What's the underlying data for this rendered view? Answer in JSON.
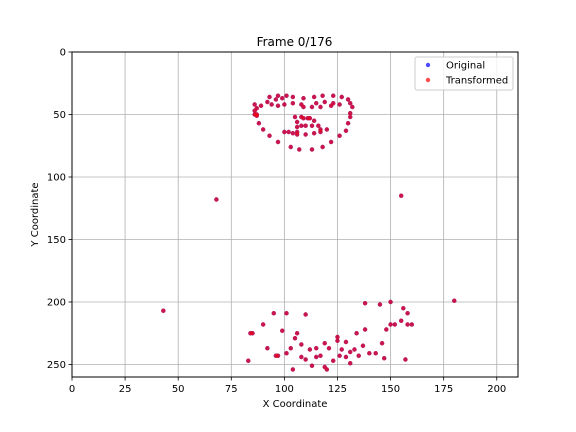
{
  "chart_data": {
    "type": "scatter",
    "title": "Frame 0/176",
    "xlabel": "X Coordinate",
    "ylabel": "Y Coordinate",
    "xlim": [
      0,
      210
    ],
    "ylim": [
      260,
      0
    ],
    "y_inverted": true,
    "grid": true,
    "legend_position": "top-right",
    "x_ticks": [
      0,
      25,
      50,
      75,
      100,
      125,
      150,
      175,
      200
    ],
    "y_ticks": [
      0,
      50,
      100,
      150,
      200,
      250
    ],
    "series": [
      {
        "name": "Original",
        "color": "#0000ff",
        "points": [
          [
            86,
            47
          ],
          [
            87,
            45
          ],
          [
            89,
            43
          ],
          [
            92,
            40
          ],
          [
            96,
            38
          ],
          [
            99,
            37
          ],
          [
            86,
            42
          ],
          [
            93,
            36
          ],
          [
            97,
            35
          ],
          [
            101,
            35
          ],
          [
            104,
            36
          ],
          [
            109,
            37
          ],
          [
            109,
            44
          ],
          [
            113,
            44
          ],
          [
            117,
            44
          ],
          [
            122,
            43
          ],
          [
            114,
            36
          ],
          [
            118,
            35
          ],
          [
            123,
            35
          ],
          [
            127,
            36
          ],
          [
            130,
            38
          ],
          [
            131,
            41
          ],
          [
            132,
            44
          ],
          [
            131,
            49
          ],
          [
            131,
            52
          ],
          [
            130,
            57
          ],
          [
            129,
            63
          ],
          [
            126,
            67
          ],
          [
            122,
            72
          ],
          [
            118,
            76
          ],
          [
            113,
            78
          ],
          [
            107,
            78
          ],
          [
            103,
            76
          ],
          [
            97,
            72
          ],
          [
            93,
            67
          ],
          [
            90,
            62
          ],
          [
            88,
            57
          ],
          [
            87,
            51
          ],
          [
            97,
            43
          ],
          [
            100,
            42
          ],
          [
            104,
            41
          ],
          [
            108,
            42
          ],
          [
            115,
            41
          ],
          [
            119,
            40
          ],
          [
            123,
            41
          ],
          [
            126,
            42
          ],
          [
            105,
            52
          ],
          [
            106,
            56
          ],
          [
            106,
            60
          ],
          [
            106,
            64
          ],
          [
            109,
            53
          ],
          [
            112,
            53
          ],
          [
            114,
            55
          ],
          [
            116,
            59
          ],
          [
            117,
            62
          ],
          [
            100,
            64
          ],
          [
            102,
            64
          ],
          [
            104,
            65
          ],
          [
            106,
            66
          ],
          [
            110,
            66
          ],
          [
            114,
            65
          ],
          [
            117,
            64
          ],
          [
            120,
            62
          ],
          [
            108,
            59
          ],
          [
            110,
            59
          ],
          [
            113,
            59
          ],
          [
            68,
            118
          ],
          [
            155,
            115
          ],
          [
            43,
            207
          ],
          [
            84,
            225
          ],
          [
            85,
            225
          ],
          [
            83,
            247
          ],
          [
            90,
            218
          ],
          [
            92,
            237
          ],
          [
            96,
            243
          ],
          [
            99,
            223
          ],
          [
            101,
            241
          ],
          [
            103,
            237
          ],
          [
            104,
            254
          ],
          [
            105,
            229
          ],
          [
            106,
            225
          ],
          [
            108,
            234
          ],
          [
            108,
            244
          ],
          [
            110,
            210
          ],
          [
            110,
            246
          ],
          [
            112,
            238
          ],
          [
            113,
            251
          ],
          [
            115,
            244
          ],
          [
            117,
            243
          ],
          [
            119,
            233
          ],
          [
            121,
            237
          ],
          [
            123,
            247
          ],
          [
            125,
            231
          ],
          [
            127,
            238
          ],
          [
            129,
            244
          ],
          [
            131,
            249
          ],
          [
            131,
            240
          ],
          [
            129,
            232
          ],
          [
            133,
            238
          ],
          [
            134,
            225
          ],
          [
            137,
            235
          ],
          [
            138,
            222
          ],
          [
            140,
            241
          ],
          [
            143,
            241
          ],
          [
            146,
            233
          ],
          [
            148,
            222
          ],
          [
            150,
            218
          ],
          [
            150,
            200
          ],
          [
            152,
            218
          ],
          [
            155,
            215
          ],
          [
            156,
            205
          ],
          [
            158,
            209
          ],
          [
            157,
            246
          ],
          [
            180,
            199
          ],
          [
            95,
            209
          ],
          [
            101,
            209
          ],
          [
            97,
            243
          ],
          [
            115,
            237
          ],
          [
            119,
            252
          ],
          [
            120,
            254
          ],
          [
            125,
            228
          ],
          [
            126,
            243
          ],
          [
            135,
            243
          ],
          [
            138,
            201
          ],
          [
            145,
            202
          ],
          [
            147,
            245
          ],
          [
            158,
            218
          ],
          [
            160,
            218
          ],
          [
            86,
            50
          ],
          [
            87,
            50
          ],
          [
            94,
            42
          ],
          [
            108,
            52
          ],
          [
            111,
            53
          ]
        ]
      },
      {
        "name": "Transformed",
        "color": "#ff0000",
        "points": [
          [
            86,
            47
          ],
          [
            87,
            45
          ],
          [
            89,
            43
          ],
          [
            92,
            40
          ],
          [
            96,
            38
          ],
          [
            99,
            37
          ],
          [
            86,
            42
          ],
          [
            93,
            36
          ],
          [
            97,
            35
          ],
          [
            101,
            35
          ],
          [
            104,
            36
          ],
          [
            109,
            37
          ],
          [
            109,
            44
          ],
          [
            113,
            44
          ],
          [
            117,
            44
          ],
          [
            122,
            43
          ],
          [
            114,
            36
          ],
          [
            118,
            35
          ],
          [
            123,
            35
          ],
          [
            127,
            36
          ],
          [
            130,
            38
          ],
          [
            131,
            41
          ],
          [
            132,
            44
          ],
          [
            131,
            49
          ],
          [
            131,
            52
          ],
          [
            130,
            57
          ],
          [
            129,
            63
          ],
          [
            126,
            67
          ],
          [
            122,
            72
          ],
          [
            118,
            76
          ],
          [
            113,
            78
          ],
          [
            107,
            78
          ],
          [
            103,
            76
          ],
          [
            97,
            72
          ],
          [
            93,
            67
          ],
          [
            90,
            62
          ],
          [
            88,
            57
          ],
          [
            87,
            51
          ],
          [
            97,
            43
          ],
          [
            100,
            42
          ],
          [
            104,
            41
          ],
          [
            108,
            42
          ],
          [
            115,
            41
          ],
          [
            119,
            40
          ],
          [
            123,
            41
          ],
          [
            126,
            42
          ],
          [
            105,
            52
          ],
          [
            106,
            56
          ],
          [
            106,
            60
          ],
          [
            106,
            64
          ],
          [
            109,
            53
          ],
          [
            112,
            53
          ],
          [
            114,
            55
          ],
          [
            116,
            59
          ],
          [
            117,
            62
          ],
          [
            100,
            64
          ],
          [
            102,
            64
          ],
          [
            104,
            65
          ],
          [
            106,
            66
          ],
          [
            110,
            66
          ],
          [
            114,
            65
          ],
          [
            117,
            64
          ],
          [
            120,
            62
          ],
          [
            108,
            59
          ],
          [
            110,
            59
          ],
          [
            113,
            59
          ],
          [
            68,
            118
          ],
          [
            155,
            115
          ],
          [
            43,
            207
          ],
          [
            84,
            225
          ],
          [
            85,
            225
          ],
          [
            83,
            247
          ],
          [
            90,
            218
          ],
          [
            92,
            237
          ],
          [
            96,
            243
          ],
          [
            99,
            223
          ],
          [
            101,
            241
          ],
          [
            103,
            237
          ],
          [
            104,
            254
          ],
          [
            105,
            229
          ],
          [
            106,
            225
          ],
          [
            108,
            234
          ],
          [
            108,
            244
          ],
          [
            110,
            210
          ],
          [
            110,
            246
          ],
          [
            112,
            238
          ],
          [
            113,
            251
          ],
          [
            115,
            244
          ],
          [
            117,
            243
          ],
          [
            119,
            233
          ],
          [
            121,
            237
          ],
          [
            123,
            247
          ],
          [
            125,
            231
          ],
          [
            127,
            238
          ],
          [
            129,
            244
          ],
          [
            131,
            249
          ],
          [
            131,
            240
          ],
          [
            129,
            232
          ],
          [
            133,
            238
          ],
          [
            134,
            225
          ],
          [
            137,
            235
          ],
          [
            138,
            222
          ],
          [
            140,
            241
          ],
          [
            143,
            241
          ],
          [
            146,
            233
          ],
          [
            148,
            222
          ],
          [
            150,
            218
          ],
          [
            150,
            200
          ],
          [
            152,
            218
          ],
          [
            155,
            215
          ],
          [
            156,
            205
          ],
          [
            158,
            209
          ],
          [
            157,
            246
          ],
          [
            180,
            199
          ],
          [
            95,
            209
          ],
          [
            101,
            209
          ],
          [
            97,
            243
          ],
          [
            115,
            237
          ],
          [
            119,
            252
          ],
          [
            120,
            254
          ],
          [
            125,
            228
          ],
          [
            126,
            243
          ],
          [
            135,
            243
          ],
          [
            138,
            201
          ],
          [
            145,
            202
          ],
          [
            147,
            245
          ],
          [
            158,
            218
          ],
          [
            160,
            218
          ],
          [
            86,
            50
          ],
          [
            87,
            50
          ],
          [
            94,
            42
          ],
          [
            108,
            52
          ],
          [
            111,
            53
          ]
        ]
      }
    ]
  }
}
